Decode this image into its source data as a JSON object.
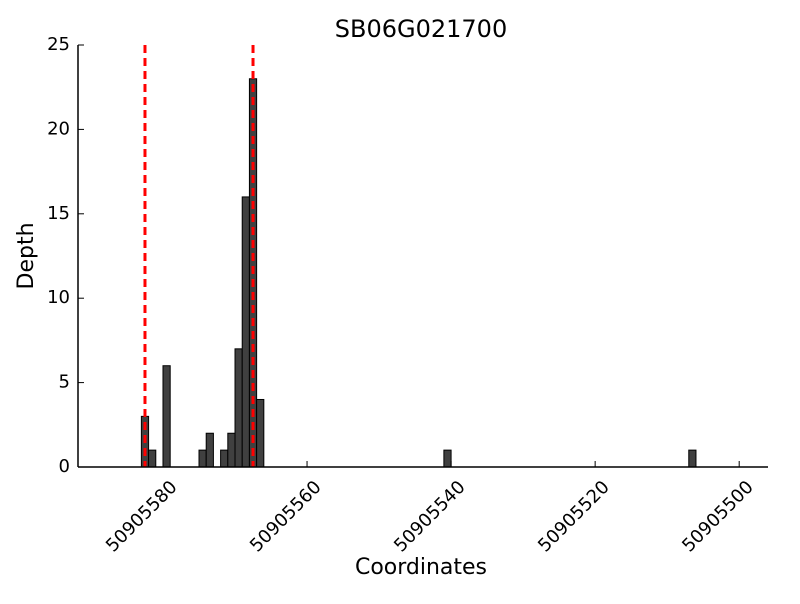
{
  "chart_data": {
    "type": "bar",
    "title": "SB06G021700",
    "x_label": "Coordinates",
    "y_label": "Depth",
    "x": [
      50905583,
      50905582,
      50905580,
      50905575,
      50905574,
      50905572,
      50905571,
      50905570,
      50905569,
      50905568,
      50905567,
      50905541,
      50905507
    ],
    "values": [
      3,
      1,
      6,
      1,
      2,
      1,
      2,
      7,
      16,
      23,
      4,
      1,
      1
    ],
    "color": "#404040",
    "xlim": [
      50905591.8,
      50905496
    ],
    "xticks": [
      50905580,
      50905560,
      50905540,
      50905520,
      50905500
    ],
    "ylim": [
      0,
      25
    ],
    "yticks": [
      0,
      5,
      10,
      15,
      20,
      25
    ],
    "vlines": [
      50905582.5,
      50905567.5
    ],
    "vline_color": "#ff0000"
  }
}
